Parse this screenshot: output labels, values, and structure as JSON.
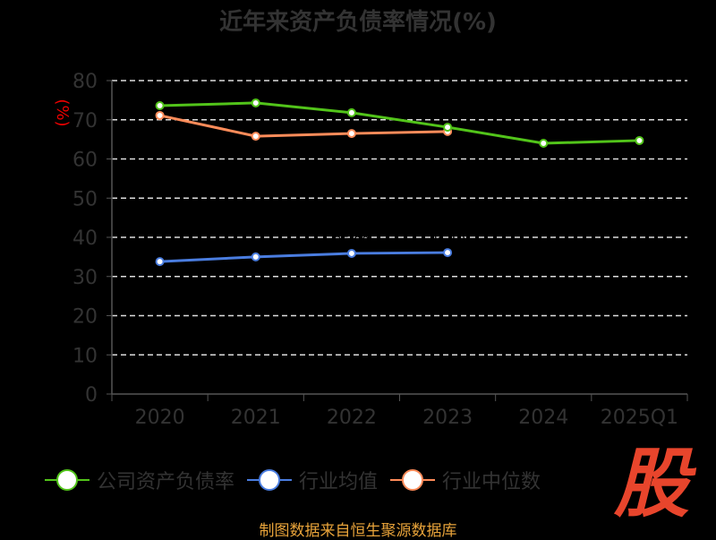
{
  "chart_data": {
    "type": "line",
    "title": "近年来资产负债率情况(%)",
    "ylabel": "(%)",
    "xlabel": "",
    "categories": [
      "2020",
      "2021",
      "2022",
      "2023",
      "2024",
      "2025Q1"
    ],
    "ylim": [
      0,
      80
    ],
    "yticks": [
      "0",
      "10",
      "20",
      "30",
      "40",
      "50",
      "60",
      "70",
      "80"
    ],
    "grid": true,
    "legend_position": "bottom",
    "series": [
      {
        "name": "公司资产负债率",
        "color": "#52c41a",
        "values": [
          73.6,
          74.3,
          71.8,
          68.1,
          64.0,
          64.7
        ]
      },
      {
        "name": "行业均值",
        "color": "#4a7de0",
        "values": [
          33.8,
          35.0,
          35.9,
          36.1,
          null,
          null
        ]
      },
      {
        "name": "行业中位数",
        "color": "#ff8c5a",
        "values": [
          71.1,
          65.8,
          66.5,
          67.0,
          null,
          null
        ]
      }
    ]
  },
  "footer": "制图数据来自恒生聚源数据库",
  "logo_text": "股"
}
